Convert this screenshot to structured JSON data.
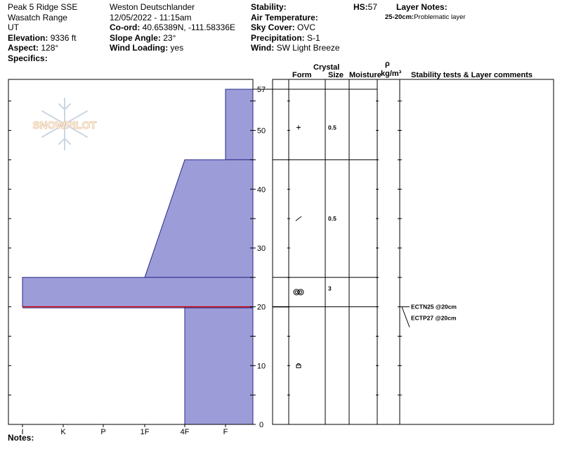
{
  "header": {
    "location": "Peak 5 Ridge SSE",
    "range": "Wasatch Range",
    "state": "UT",
    "elevation_label": "Elevation:",
    "elevation": "9336 ft",
    "aspect_label": "Aspect:",
    "aspect": "128°",
    "specifics_label": "Specifics:",
    "observer": "Weston Deutschlander",
    "datetime": "12/05/2022 - 11:15am",
    "coord_label": "Co-ord:",
    "coord": "40.65389N, -111.58336E",
    "slope_label": "Slope Angle:",
    "slope": "23°",
    "wind_loading_label": "Wind Loading:",
    "wind_loading": "yes",
    "stability_label": "Stability:",
    "air_temp_label": "Air Temperature:",
    "sky_label": "Sky Cover:",
    "sky": "OVC",
    "precip_label": "Precipitation:",
    "precip": "S-1",
    "wind_label": "Wind:",
    "wind": "SW Light Breeze",
    "hs_label": "HS:",
    "hs": "57",
    "layer_notes_label": "Layer Notes:",
    "layer_note_depth": "25-20cm:",
    "layer_note_text": "Problematic layer"
  },
  "notes_label": "Notes:",
  "logo_text": "SNOWPILOT",
  "colors": {
    "layer_fill": "#9c9cd8",
    "layer_stroke": "#2a2a8c",
    "weak_layer": "#cc0000"
  },
  "table_headers": {
    "crystal": "Crystal",
    "form": "Form",
    "size": "Size",
    "moisture": "Moisture",
    "rho": "ρ",
    "density_unit": "kg/m³",
    "stability": "Stability tests & Layer comments"
  },
  "chart_data": {
    "type": "snow_profile",
    "total_depth_cm": 57,
    "y_ticks": [
      0,
      10,
      20,
      30,
      40,
      50,
      57
    ],
    "hardness_scale": [
      "I",
      "K",
      "P",
      "1F",
      "4F",
      "F"
    ],
    "layers": [
      {
        "top": 57,
        "bottom": 45,
        "hardness_top": "F",
        "hardness_bottom": "F",
        "form": "new-snow",
        "size": "0.5"
      },
      {
        "top": 45,
        "bottom": 25,
        "hardness_top": "4F",
        "hardness_bottom": "1F",
        "form": "decomposing",
        "size": "0.5"
      },
      {
        "top": 25,
        "bottom": 20,
        "hardness_top": "I",
        "hardness_bottom": "I",
        "form": "surface-hoar",
        "size": "3"
      },
      {
        "top": 20,
        "bottom": 0,
        "hardness_top": "4F",
        "hardness_bottom": "4F",
        "form": "melt-forms",
        "size": ""
      }
    ],
    "weak_layer_depth": 20,
    "tests": [
      {
        "text": "ECTN25 @20cm",
        "depth": 20
      },
      {
        "text": "ECTP27 @20cm",
        "depth": 20
      }
    ]
  }
}
